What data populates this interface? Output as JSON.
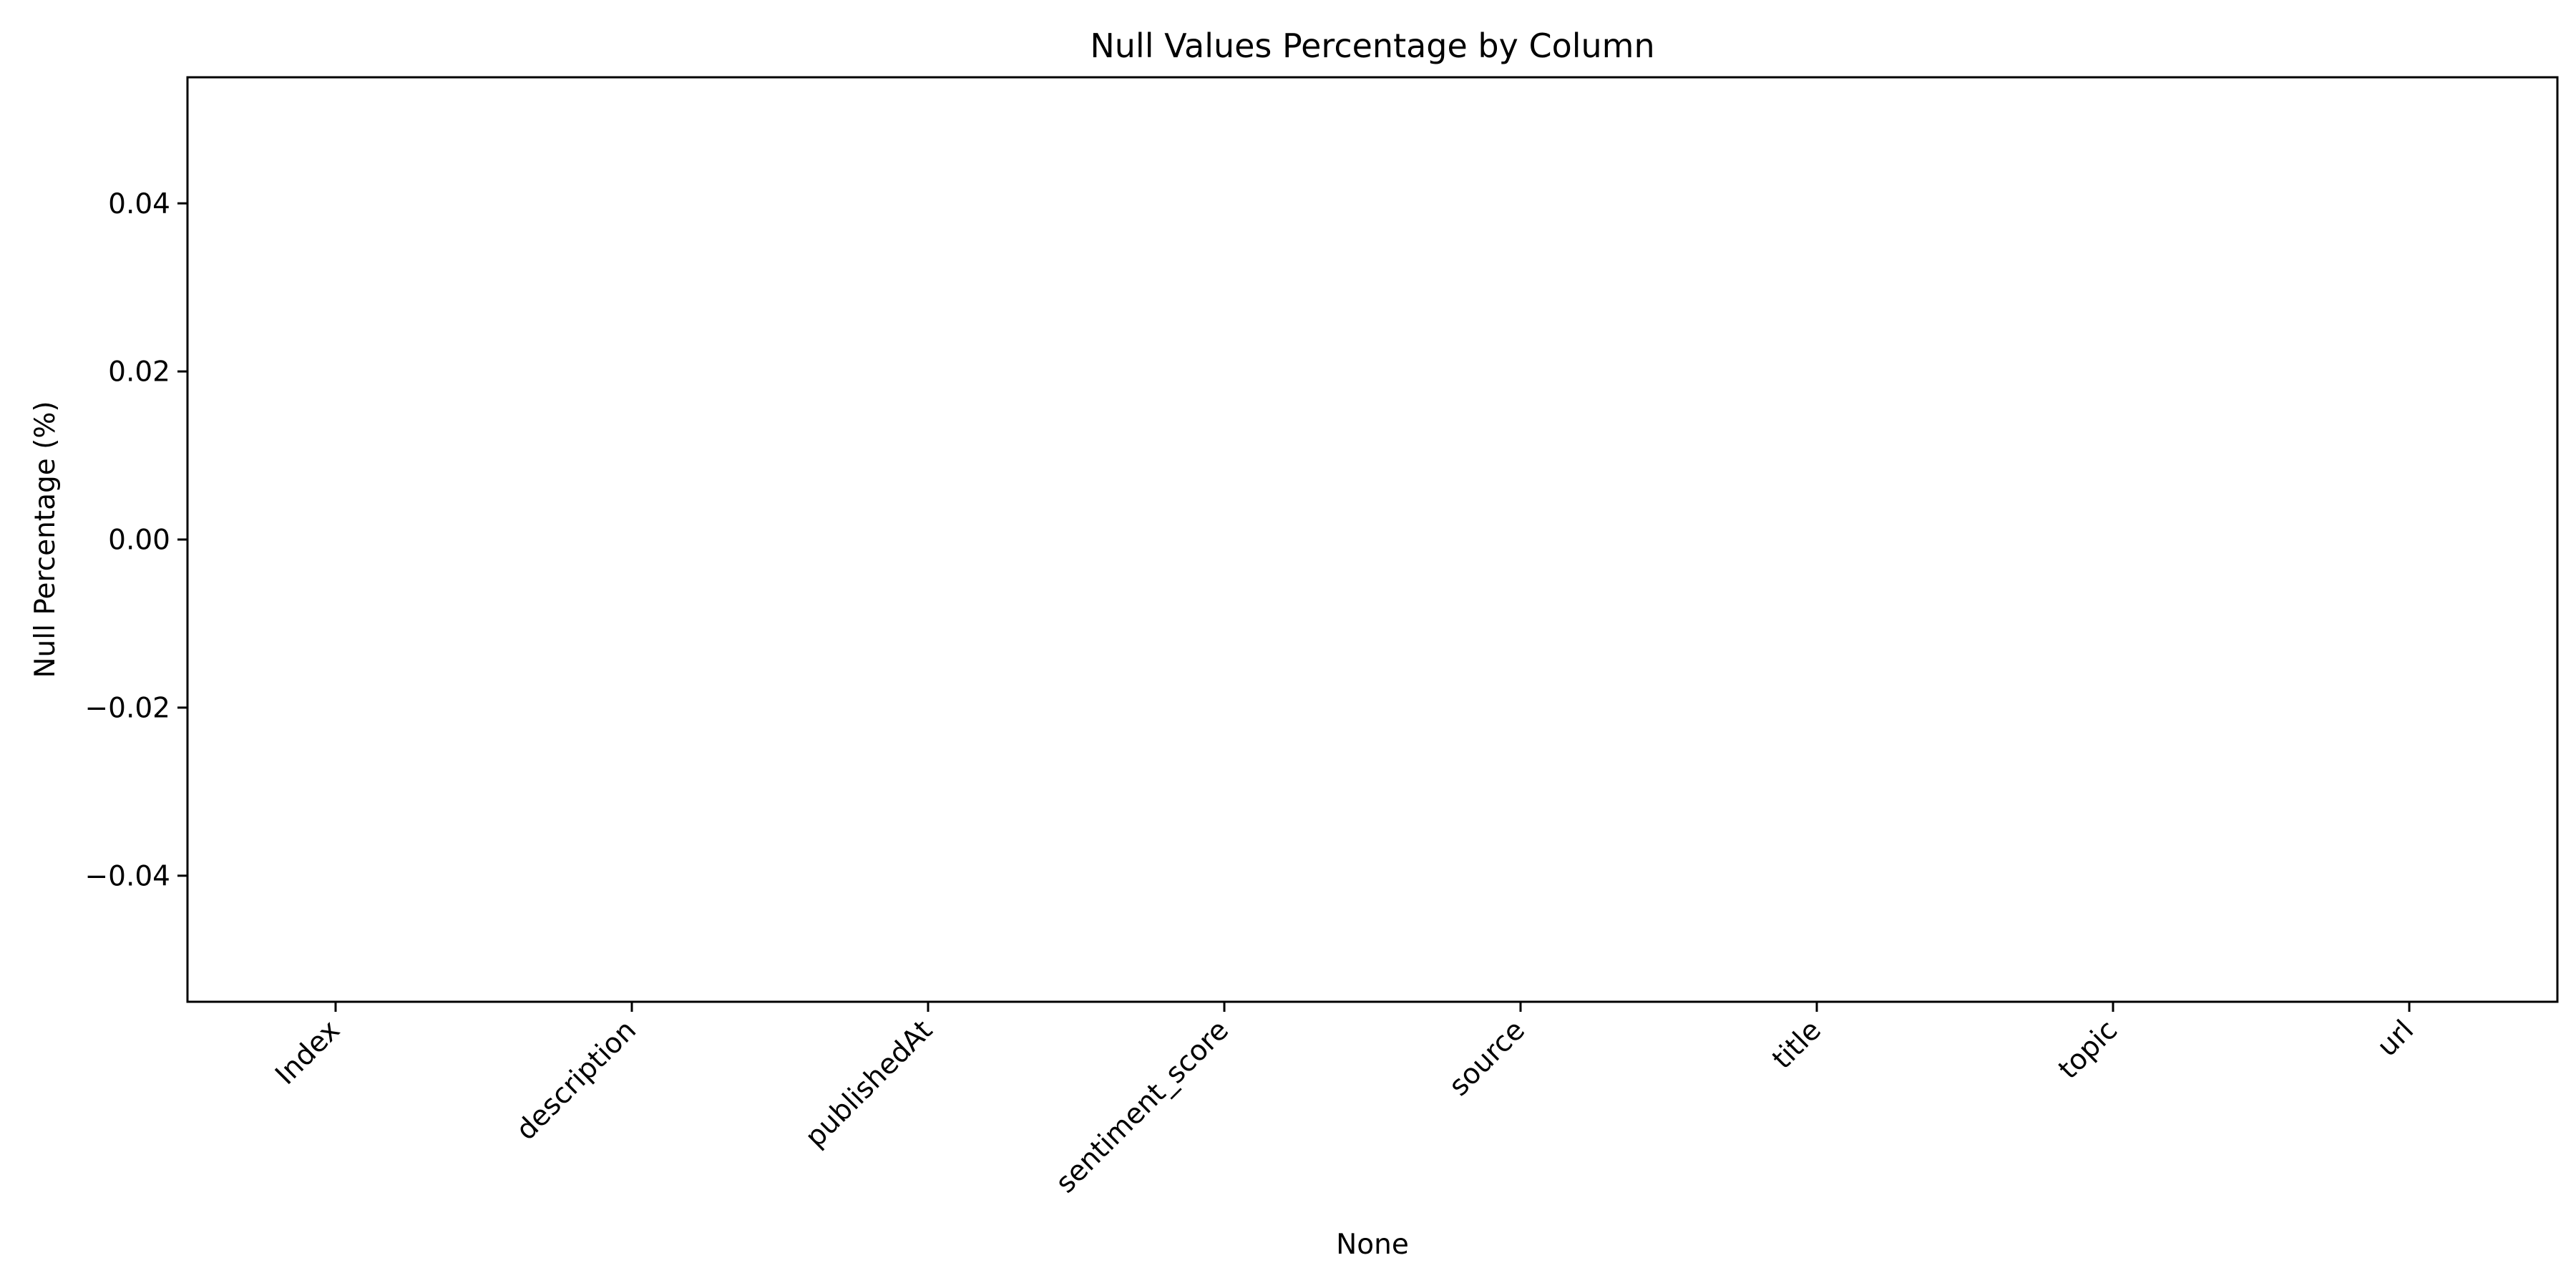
{
  "chart_data": {
    "type": "bar",
    "title": "Null Values Percentage by Column",
    "xlabel": "None",
    "ylabel": "Null Percentage (%)",
    "categories": [
      "Index",
      "description",
      "publishedAt",
      "sentiment_score",
      "source",
      "title",
      "topic",
      "url"
    ],
    "values": [
      0,
      0,
      0,
      0,
      0,
      0,
      0,
      0
    ],
    "ylim": [
      -0.055,
      0.055
    ],
    "yticks": [
      0.04,
      0.02,
      0.0,
      -0.02,
      -0.04
    ],
    "ytick_labels": [
      "0.04",
      "0.02",
      "0.00",
      "−0.02",
      "−0.04"
    ],
    "bar_color": "#1f77b4",
    "grid": false,
    "legend": "none"
  }
}
